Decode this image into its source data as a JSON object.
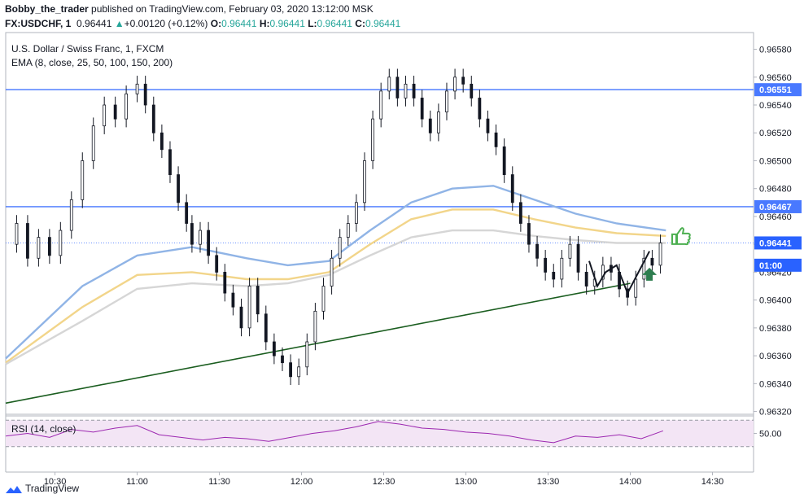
{
  "header": {
    "author": "Bobby_the_trader",
    "published_text": " published on TradingView.com, February 03, 2020 13:12:00 MSK",
    "symbol": "FX:USDCHF, 1",
    "last": "0.96441",
    "change": "+0.00120 (+0.12%)",
    "o_label": "O:",
    "o": "0.96441",
    "h_label": "H:",
    "h": "0.96441",
    "l_label": "L:",
    "l": "0.96441",
    "c_label": "C:",
    "c": "0.96441"
  },
  "footer": {
    "brand": "TradingView"
  },
  "colors": {
    "up": "#26a69a",
    "hline": "#2962ff",
    "trend": "#1b5e20",
    "ema_blue": "#90b4e6",
    "ema_yellow": "#f2d58a",
    "ema_grey": "#d6d6d6",
    "rsi": "#9c27b0",
    "rsi_band": "#f3e5f5",
    "thumb": "#4caf50",
    "arrow": "#2e7d4f"
  },
  "chart_data": [
    {
      "type": "candlestick",
      "title": "U.S. Dollar / Swiss Franc, 1, FXCM",
      "indicator": "EMA (8, close, 25, 50, 100, 150, 200)",
      "ylim": [
        0.96318,
        0.96592
      ],
      "y_ticks": [
        "0.96580",
        "0.96560",
        "0.96540",
        "0.96520",
        "0.96500",
        "0.96480",
        "0.96460",
        "0.96440",
        "0.96420",
        "0.96400",
        "0.96380",
        "0.96360",
        "0.96340",
        "0.96320"
      ],
      "x_ticks": [
        "10:30",
        "11:00",
        "11:30",
        "12:00",
        "12:30",
        "13:00",
        "13:30",
        "14:00",
        "14:30"
      ],
      "x_tick_minutes": [
        30,
        60,
        90,
        120,
        150,
        180,
        210,
        240,
        270
      ],
      "x_range_minutes": [
        12,
        285
      ],
      "price_labels": [
        {
          "text": "0.96551",
          "price": 0.96551,
          "style": "hline"
        },
        {
          "text": "0.96467",
          "price": 0.96467,
          "style": "hline"
        },
        {
          "text": "0.96441",
          "price": 0.96441,
          "style": "last"
        },
        {
          "text": "01:00",
          "price": 0.96425,
          "style": "countdown"
        }
      ],
      "horizontal_lines": [
        0.96551,
        0.96467
      ],
      "trend_line": {
        "x1": 12,
        "y1": 0.96326,
        "x2": 240,
        "y2": 0.96412
      },
      "close_path": [
        [
          12,
          0.9644
        ],
        [
          16,
          0.96455
        ],
        [
          20,
          0.9643
        ],
        [
          24,
          0.96445
        ],
        [
          28,
          0.96432
        ],
        [
          32,
          0.9645
        ],
        [
          36,
          0.96472
        ],
        [
          40,
          0.965
        ],
        [
          44,
          0.96525
        ],
        [
          48,
          0.9654
        ],
        [
          52,
          0.9653
        ],
        [
          56,
          0.96548
        ],
        [
          60,
          0.96555
        ],
        [
          63,
          0.9654
        ],
        [
          66,
          0.9652
        ],
        [
          69,
          0.96508
        ],
        [
          72,
          0.9649
        ],
        [
          75,
          0.9647
        ],
        [
          78,
          0.96455
        ],
        [
          80,
          0.9644
        ],
        [
          83,
          0.9645
        ],
        [
          86,
          0.96432
        ],
        [
          89,
          0.9642
        ],
        [
          92,
          0.96405
        ],
        [
          95,
          0.96395
        ],
        [
          98,
          0.9638
        ],
        [
          101,
          0.9641
        ],
        [
          104,
          0.9639
        ],
        [
          107,
          0.9637
        ],
        [
          110,
          0.9636
        ],
        [
          113,
          0.96355
        ],
        [
          116,
          0.96345
        ],
        [
          119,
          0.96352
        ],
        [
          122,
          0.9637
        ],
        [
          125,
          0.96392
        ],
        [
          128,
          0.9641
        ],
        [
          131,
          0.9643
        ],
        [
          134,
          0.96445
        ],
        [
          137,
          0.96455
        ],
        [
          140,
          0.9647
        ],
        [
          143,
          0.965
        ],
        [
          146,
          0.9653
        ],
        [
          149,
          0.9655
        ],
        [
          152,
          0.9656
        ],
        [
          155,
          0.96545
        ],
        [
          158,
          0.96555
        ],
        [
          161,
          0.96545
        ],
        [
          164,
          0.9653
        ],
        [
          167,
          0.9652
        ],
        [
          170,
          0.96535
        ],
        [
          173,
          0.9655
        ],
        [
          176,
          0.9656
        ],
        [
          179,
          0.96555
        ],
        [
          182,
          0.96545
        ],
        [
          185,
          0.9653
        ],
        [
          188,
          0.9652
        ],
        [
          191,
          0.9651
        ],
        [
          194,
          0.9649
        ],
        [
          197,
          0.9647
        ],
        [
          200,
          0.96455
        ],
        [
          203,
          0.9644
        ],
        [
          206,
          0.9643
        ],
        [
          209,
          0.9642
        ],
        [
          212,
          0.96415
        ],
        [
          215,
          0.9643
        ],
        [
          218,
          0.9644
        ],
        [
          221,
          0.9642
        ],
        [
          224,
          0.9641
        ],
        [
          227,
          0.96415
        ],
        [
          230,
          0.96425
        ],
        [
          233,
          0.9642
        ],
        [
          236,
          0.96408
        ],
        [
          239,
          0.96402
        ],
        [
          242,
          0.96415
        ],
        [
          245,
          0.9643
        ],
        [
          248,
          0.96425
        ],
        [
          251,
          0.96441
        ]
      ],
      "ema_series": [
        {
          "color_key": "ema_blue",
          "points": [
            [
              12,
              0.96358
            ],
            [
              40,
              0.9641
            ],
            [
              60,
              0.96432
            ],
            [
              80,
              0.96438
            ],
            [
              100,
              0.9643
            ],
            [
              115,
              0.96425
            ],
            [
              130,
              0.96428
            ],
            [
              145,
              0.9645
            ],
            [
              160,
              0.9647
            ],
            [
              175,
              0.9648
            ],
            [
              190,
              0.96482
            ],
            [
              205,
              0.96472
            ],
            [
              220,
              0.96462
            ],
            [
              235,
              0.96455
            ],
            [
              253,
              0.9645
            ]
          ]
        },
        {
          "color_key": "ema_yellow",
          "points": [
            [
              12,
              0.96355
            ],
            [
              40,
              0.96395
            ],
            [
              60,
              0.96418
            ],
            [
              80,
              0.9642
            ],
            [
              100,
              0.96415
            ],
            [
              115,
              0.96415
            ],
            [
              130,
              0.9642
            ],
            [
              145,
              0.9644
            ],
            [
              160,
              0.96458
            ],
            [
              175,
              0.96465
            ],
            [
              190,
              0.96465
            ],
            [
              205,
              0.96458
            ],
            [
              220,
              0.96452
            ],
            [
              235,
              0.96448
            ],
            [
              253,
              0.96446
            ]
          ]
        },
        {
          "color_key": "ema_grey",
          "points": [
            [
              12,
              0.96354
            ],
            [
              40,
              0.96385
            ],
            [
              60,
              0.96408
            ],
            [
              80,
              0.96412
            ],
            [
              100,
              0.9641
            ],
            [
              115,
              0.96412
            ],
            [
              130,
              0.96418
            ],
            [
              145,
              0.96432
            ],
            [
              160,
              0.96445
            ],
            [
              175,
              0.9645
            ],
            [
              190,
              0.9645
            ],
            [
              205,
              0.96446
            ],
            [
              220,
              0.96443
            ],
            [
              235,
              0.96441
            ],
            [
              253,
              0.96441
            ]
          ]
        }
      ]
    },
    {
      "type": "line",
      "title": "RSI (14, close)",
      "ylim": [
        38,
        62
      ],
      "y_ticks": [
        "50.00"
      ],
      "band": [
        40,
        60
      ],
      "x": [
        12,
        20,
        28,
        36,
        44,
        52,
        60,
        68,
        76,
        84,
        92,
        100,
        108,
        116,
        124,
        132,
        140,
        148,
        156,
        164,
        172,
        180,
        188,
        196,
        204,
        212,
        220,
        228,
        236,
        244,
        252
      ],
      "values": [
        48,
        50,
        47,
        53,
        51,
        54,
        56,
        49,
        47,
        45,
        47,
        46,
        44,
        47,
        50,
        52,
        55,
        59,
        57,
        54,
        53,
        51,
        50,
        48,
        45,
        43,
        48,
        47,
        49,
        46,
        52
      ]
    }
  ]
}
